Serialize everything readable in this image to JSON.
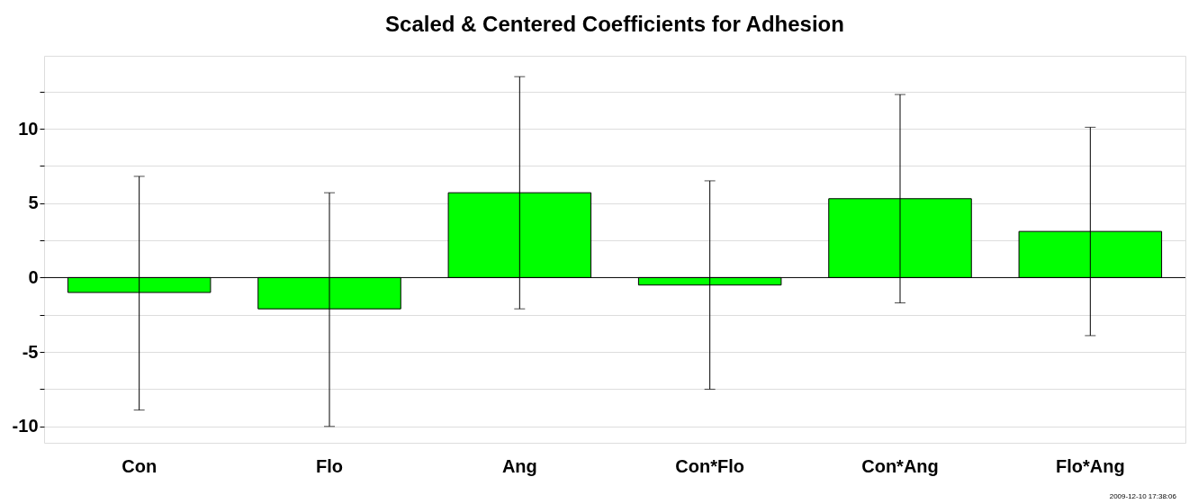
{
  "chart_data": {
    "type": "bar",
    "title": "Scaled & Centered Coefficients for Adhesion",
    "categories": [
      "Con",
      "Flo",
      "Ang",
      "Con*Flo",
      "Con*Ang",
      "Flo*Ang"
    ],
    "values": [
      -1.0,
      -2.1,
      5.7,
      -0.5,
      5.3,
      3.1
    ],
    "errors": [
      [
        -8.9,
        6.8
      ],
      [
        -10.0,
        5.7
      ],
      [
        -2.1,
        13.5
      ],
      [
        -7.5,
        6.5
      ],
      [
        -1.7,
        12.3
      ],
      [
        -3.9,
        10.1
      ]
    ],
    "color": "#00ff00",
    "ylim": [
      -11.1,
      14.9
    ],
    "yticks": [
      {
        "value": -10,
        "label": "-10"
      },
      {
        "value": -7.5,
        "label": null
      },
      {
        "value": -5,
        "label": "-5"
      },
      {
        "value": -2.5,
        "label": null
      },
      0,
      {
        "value": 2.5,
        "label": null
      },
      5,
      {
        "value": 7.5,
        "label": null
      },
      10,
      {
        "value": 12.5,
        "label": null
      }
    ],
    "grid": "y",
    "ref_lines": [
      {
        "axis": "y",
        "value": 0,
        "color": "#000000"
      }
    ],
    "annotations": [
      "2009-12-10 17:38:06"
    ]
  }
}
